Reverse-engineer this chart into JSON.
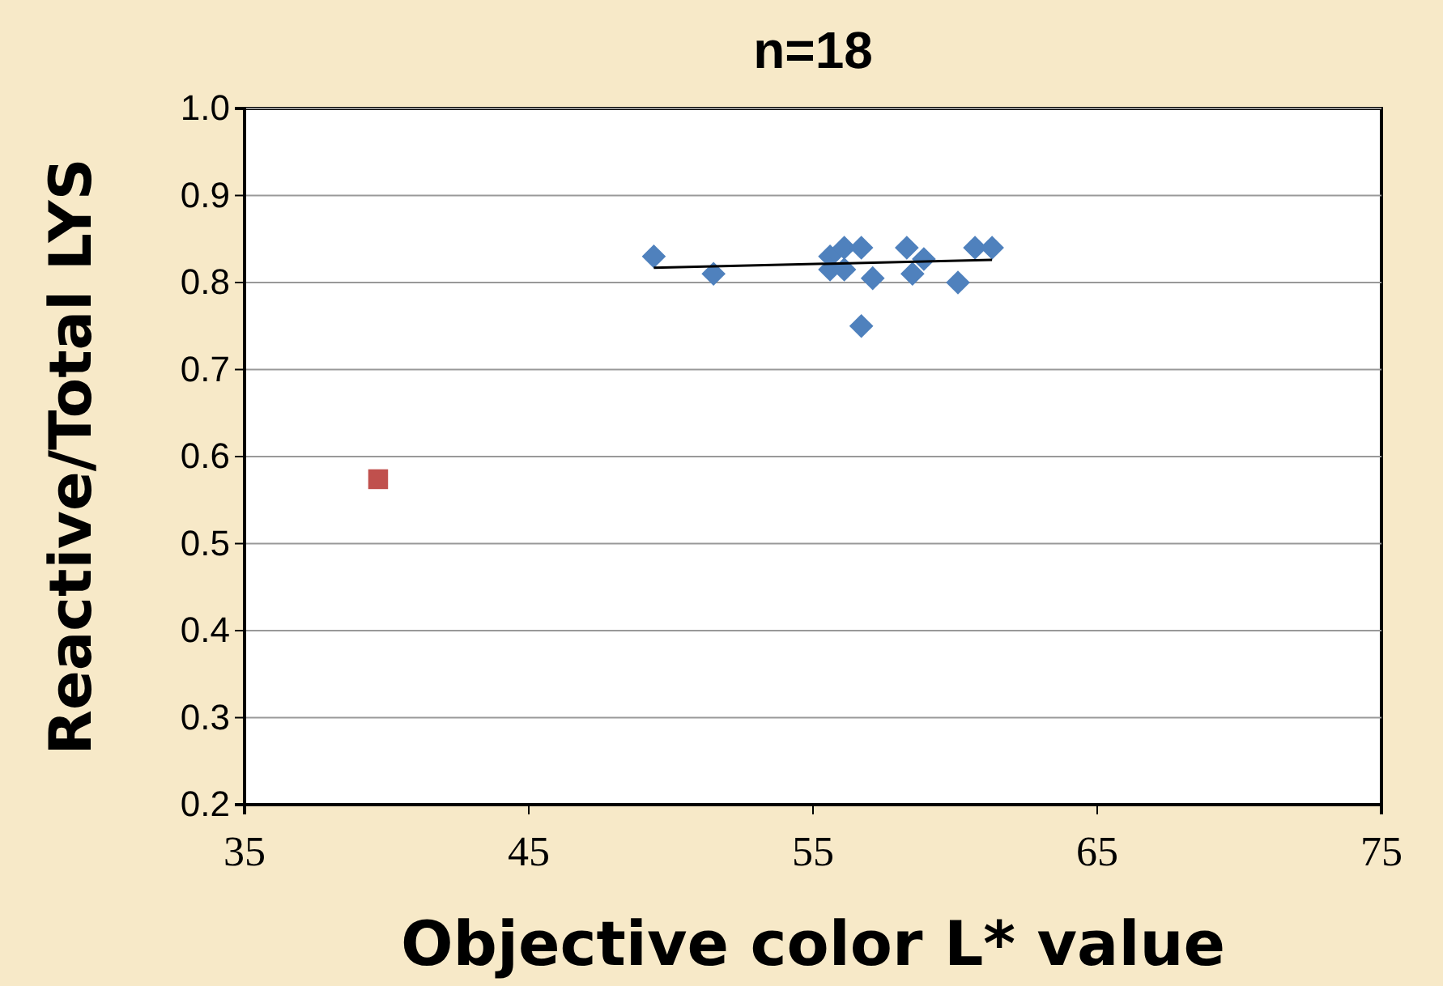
{
  "chart_data": {
    "type": "scatter",
    "title": "n=18",
    "xlabel": "Objective color L* value",
    "ylabel": "Reactive/Total LYS",
    "xlim": [
      35,
      75
    ],
    "xticks": [
      35,
      45,
      55,
      65,
      75
    ],
    "ylim": [
      0.2,
      1.0
    ],
    "yticks": [
      {
        "value": 0.2,
        "label": "0.2"
      },
      {
        "value": 0.3,
        "label": "0.3"
      },
      {
        "value": 0.4,
        "label": "0.4"
      },
      {
        "value": 0.5,
        "label": "0.5"
      },
      {
        "value": 0.6,
        "label": "0.6"
      },
      {
        "value": 0.7,
        "label": "0.7"
      },
      {
        "value": 0.8,
        "label": "0.8"
      },
      {
        "value": 0.9,
        "label": "0.9"
      },
      {
        "value": 1.0,
        "label": "1.0"
      }
    ],
    "grid": "y",
    "series": [
      {
        "type": "scatter",
        "marker": "diamond",
        "color": "#4f81bd",
        "x": [
          49.4,
          51.5,
          55.6,
          55.6,
          56.1,
          56.1,
          56.7,
          56.7,
          57.1,
          58.3,
          58.5,
          58.9,
          60.1,
          60.7,
          61.3
        ],
        "values": [
          0.83,
          0.81,
          0.83,
          0.815,
          0.84,
          0.815,
          0.84,
          0.75,
          0.805,
          0.84,
          0.81,
          0.827,
          0.8,
          0.84,
          0.84
        ]
      },
      {
        "type": "scatter",
        "marker": "square",
        "color": "#c0504d",
        "x": [
          39.7
        ],
        "values": [
          0.574
        ]
      },
      {
        "type": "line",
        "marker": "none",
        "color": "#000000",
        "x": [
          49.4,
          61.3
        ],
        "values": [
          0.817,
          0.826
        ]
      }
    ]
  }
}
